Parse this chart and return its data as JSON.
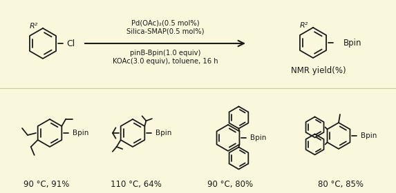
{
  "bg_color": "#FAF8DC",
  "text_color": "#1a1a1a",
  "ring_color": "#1a1a1a",
  "reaction_conditions_line1": "Pd(OAc)₂(0.5 mol%)",
  "reaction_conditions_line2": "Silica-SMAP(0.5 mol%)",
  "reaction_conditions_line3": "pinB-Bpin(1.0 equiv)",
  "reaction_conditions_line4": "KOAc(3.0 equiv), toluene, 16 h",
  "nmr_label": "NMR yield(%)",
  "product_labels": [
    "90 °C, 91%",
    "110 °C, 64%",
    "90 °C, 80%",
    "80 °C, 85%"
  ],
  "font_size_conditions": 7.2,
  "font_size_labels": 8.5,
  "font_size_nmr": 8.5,
  "line_width": 1.3
}
